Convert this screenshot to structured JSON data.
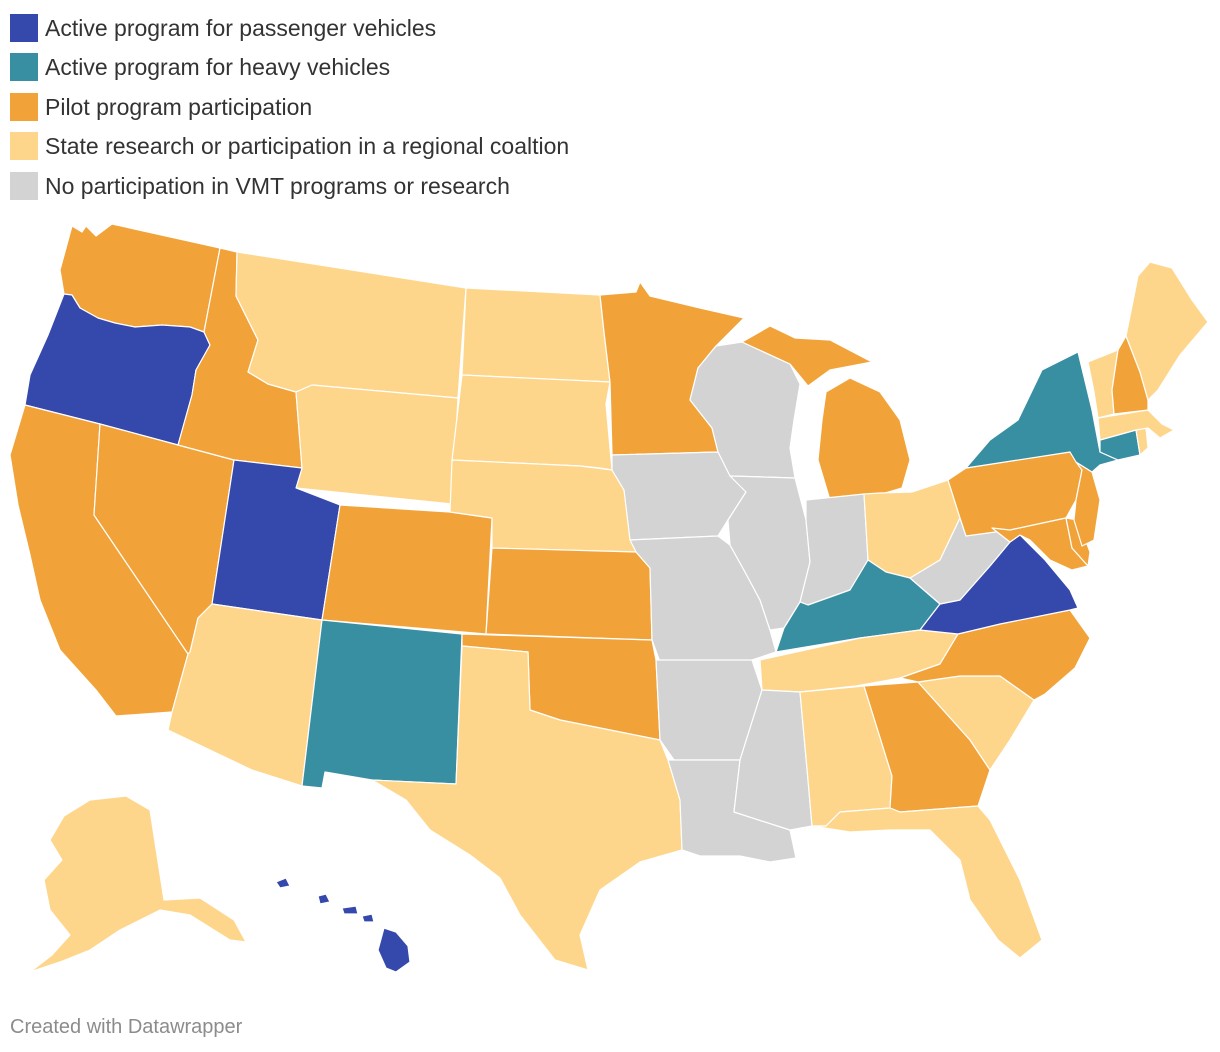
{
  "colors": {
    "passenger": "#3548ac",
    "heavy": "#398fa2",
    "pilot": "#f1a339",
    "research": "#fed68b",
    "none": "#d3d3d3"
  },
  "legend": [
    {
      "key": "passenger",
      "label": "Active program for passenger vehicles"
    },
    {
      "key": "heavy",
      "label": "Active program for heavy vehicles"
    },
    {
      "key": "pilot",
      "label": "Pilot program participation"
    },
    {
      "key": "research",
      "label": "State research or participation in a regional coaltion"
    },
    {
      "key": "none",
      "label": "No participation in VMT programs or research"
    }
  ],
  "states": {
    "WA": "pilot",
    "OR": "passenger",
    "CA": "pilot",
    "NV": "pilot",
    "ID": "pilot",
    "MT": "research",
    "WY": "research",
    "UT": "passenger",
    "AZ": "research",
    "CO": "pilot",
    "NM": "heavy",
    "ND": "research",
    "SD": "research",
    "NE": "research",
    "KS": "pilot",
    "OK": "pilot",
    "TX": "research",
    "MN": "pilot",
    "IA": "none",
    "MO": "none",
    "AR": "none",
    "LA": "none",
    "WI": "none",
    "IL": "none",
    "MI": "pilot",
    "IN": "none",
    "OH": "research",
    "KY": "heavy",
    "TN": "research",
    "MS": "none",
    "AL": "research",
    "GA": "pilot",
    "FL": "research",
    "SC": "research",
    "NC": "pilot",
    "VA": "passenger",
    "WV": "none",
    "PA": "pilot",
    "NY": "heavy",
    "MD": "pilot",
    "DE": "pilot",
    "NJ": "pilot",
    "CT": "heavy",
    "RI": "research",
    "MA": "research",
    "VT": "research",
    "NH": "pilot",
    "ME": "research",
    "AK": "research",
    "HI": "passenger"
  },
  "credit": "Created with Datawrapper"
}
